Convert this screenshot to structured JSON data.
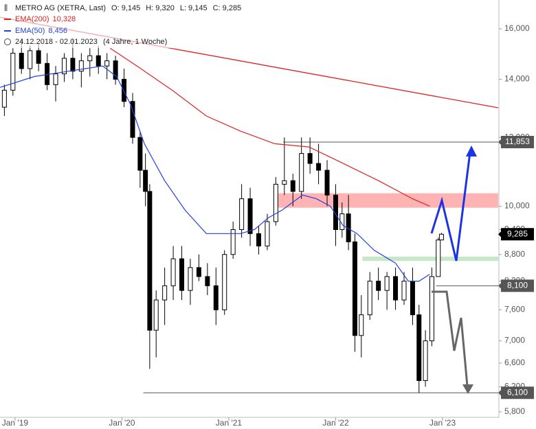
{
  "chart_data": {
    "type": "candlestick",
    "title": "METRO AG (XETRA, Last)",
    "ohlc_labels": [
      "O: 9,145",
      "H: 9,320",
      "L: 9,145",
      "C: 9,285"
    ],
    "date_range": "24.12.2018 - 02.01.2023",
    "period": "(4 Jahre, 1 Woche)",
    "log_scale": true,
    "xlim": [
      2018.859,
      2023.521
    ],
    "ylim": [
      5716,
      17270
    ],
    "xticks": [
      {
        "value": 2019,
        "label": "Jan '19"
      },
      {
        "value": 2020,
        "label": "Jan '20"
      },
      {
        "value": 2021,
        "label": "Jan '21"
      },
      {
        "value": 2022,
        "label": "Jan '22"
      },
      {
        "value": 2023,
        "label": "Jan '23"
      }
    ],
    "yticks": [
      {
        "value": 5800,
        "label": "5,800"
      },
      {
        "value": 6200,
        "label": "6,200"
      },
      {
        "value": 6600,
        "label": "6,600"
      },
      {
        "value": 7000,
        "label": "7,000"
      },
      {
        "value": 7600,
        "label": "7,600"
      },
      {
        "value": 8200,
        "label": "8,200"
      },
      {
        "value": 8800,
        "label": "8,800"
      },
      {
        "value": 9400,
        "label": "9,400"
      },
      {
        "value": 10000,
        "label": "10,000"
      },
      {
        "value": 12000,
        "label": "12,000"
      },
      {
        "value": 14000,
        "label": "14,000"
      },
      {
        "value": 16000,
        "label": "16,000"
      }
    ],
    "up_color": "#ffffff",
    "down_color": "#000000",
    "candles": {
      "x": [
        2018.9,
        2018.98,
        2019.06,
        2019.14,
        2019.22,
        2019.3,
        2019.38,
        2019.46,
        2019.54,
        2019.62,
        2019.7,
        2019.78,
        2019.86,
        2019.94,
        2020.02,
        2020.1,
        2020.17,
        2020.22,
        2020.26,
        2020.32,
        2020.4,
        2020.48,
        2020.56,
        2020.64,
        2020.72,
        2020.8,
        2020.88,
        2020.96,
        2021.04,
        2021.12,
        2021.2,
        2021.28,
        2021.36,
        2021.44,
        2021.52,
        2021.6,
        2021.68,
        2021.76,
        2021.84,
        2021.92,
        2022.0,
        2022.06,
        2022.12,
        2022.18,
        2022.24,
        2022.32,
        2022.4,
        2022.48,
        2022.56,
        2022.64,
        2022.72,
        2022.78,
        2022.84,
        2022.9,
        2022.96,
        2022.99
      ],
      "open": [
        13000,
        13600,
        15000,
        14400,
        15100,
        14600,
        13800,
        14200,
        14800,
        14300,
        14700,
        14900,
        14500,
        14700,
        14000,
        13200,
        12000,
        11000,
        10400,
        7200,
        7800,
        8100,
        8700,
        8000,
        8500,
        8300,
        8100,
        7600,
        8800,
        9400,
        10200,
        9300,
        9000,
        9600,
        10600,
        10700,
        10400,
        11500,
        11200,
        11000,
        10300,
        9400,
        9800,
        9100,
        7100,
        7500,
        8200,
        8000,
        8300,
        7800,
        8200,
        7500,
        6300,
        7000,
        8300,
        9145
      ],
      "high": [
        13800,
        15200,
        15600,
        15300,
        15400,
        15000,
        14500,
        15000,
        15600,
        15000,
        15200,
        15300,
        15000,
        14900,
        14400,
        13500,
        12200,
        11500,
        10600,
        8000,
        8500,
        9000,
        9000,
        8700,
        8800,
        8600,
        8500,
        8900,
        9600,
        10600,
        10500,
        9500,
        9800,
        10800,
        12000,
        10900,
        12000,
        12000,
        11800,
        11300,
        10600,
        10100,
        10300,
        9300,
        7900,
        8400,
        8500,
        8400,
        8500,
        8400,
        8500,
        7700,
        7200,
        8500,
        9200,
        9320
      ],
      "low": [
        12700,
        13400,
        14200,
        14000,
        14300,
        13600,
        13200,
        13900,
        14000,
        13700,
        14100,
        14200,
        14000,
        13800,
        13000,
        11800,
        10500,
        10000,
        6500,
        6700,
        7300,
        7800,
        7800,
        7700,
        8200,
        7900,
        7300,
        7500,
        8700,
        9200,
        9000,
        8800,
        8900,
        9500,
        10300,
        10000,
        10200,
        10900,
        10600,
        10000,
        9000,
        9200,
        8900,
        6800,
        6700,
        7400,
        7800,
        7600,
        7600,
        7700,
        7300,
        6100,
        6200,
        6900,
        8300,
        9145
      ],
      "close": [
        13600,
        15000,
        14400,
        15100,
        14600,
        13800,
        14200,
        14800,
        14300,
        14700,
        14900,
        14500,
        14700,
        14000,
        13200,
        12000,
        11000,
        10400,
        7200,
        7800,
        8100,
        8700,
        8000,
        8500,
        8300,
        8100,
        7600,
        8800,
        9400,
        10200,
        9300,
        9000,
        9600,
        10600,
        10700,
        10400,
        11500,
        11200,
        11000,
        10300,
        9400,
        9800,
        9100,
        7100,
        7500,
        8200,
        8000,
        8300,
        7800,
        8200,
        7500,
        6300,
        7000,
        8300,
        9145,
        9285
      ]
    },
    "series": [
      {
        "name": "EMA(200)",
        "value_label": "10,328",
        "color": "#e02020",
        "x": [
          2019.89,
          2020.14,
          2020.47,
          2020.79,
          2021.11,
          2021.43,
          2021.75,
          2022.07,
          2022.4,
          2022.72,
          2022.88
        ],
        "values": [
          15200,
          14500,
          13600,
          12700,
          12200,
          11800,
          11700,
          11200,
          10700,
          10200,
          10000
        ]
      },
      {
        "name": "EMA(50)",
        "value_label": "8,456",
        "color": "#2040e0",
        "x": [
          2018.86,
          2019.18,
          2019.5,
          2019.82,
          2019.95,
          2020.08,
          2020.21,
          2020.4,
          2020.59,
          2020.79,
          2020.92,
          2021.11,
          2021.24,
          2021.37,
          2021.5,
          2021.69,
          2021.82,
          2021.95,
          2022.07,
          2022.2,
          2022.36,
          2022.56,
          2022.68,
          2022.78,
          2022.88
        ],
        "values": [
          13700,
          14100,
          14300,
          14500,
          14100,
          13100,
          11800,
          10700,
          9900,
          9300,
          9300,
          9300,
          9400,
          9700,
          9900,
          10300,
          10200,
          10000,
          9500,
          9300,
          8900,
          8600,
          8200,
          8200,
          8350
        ]
      }
    ],
    "trendline": {
      "color": "#e02020",
      "x": [
        2018.859,
        2023.521
      ],
      "values": [
        16500,
        12980
      ]
    },
    "zones": [
      {
        "from": 9960,
        "to": 10350,
        "x_from": 2021.44,
        "color": "#ffb3b3"
      },
      {
        "from": 8650,
        "to": 8750,
        "x_from": 2022.25,
        "color": "#c8e6c8"
      }
    ],
    "price_tags": [
      {
        "value": 11853,
        "label": "11,853",
        "line_from": 2021.51,
        "color": "#555555"
      },
      {
        "value": 9285,
        "label": "9,285",
        "color": "#000000"
      },
      {
        "value": 8100,
        "label": "8,100",
        "line_from": 2022.94,
        "color": "#555555"
      },
      {
        "value": 6100,
        "label": "6,100",
        "line_from": 2020.2,
        "color": "#555555"
      }
    ]
  }
}
